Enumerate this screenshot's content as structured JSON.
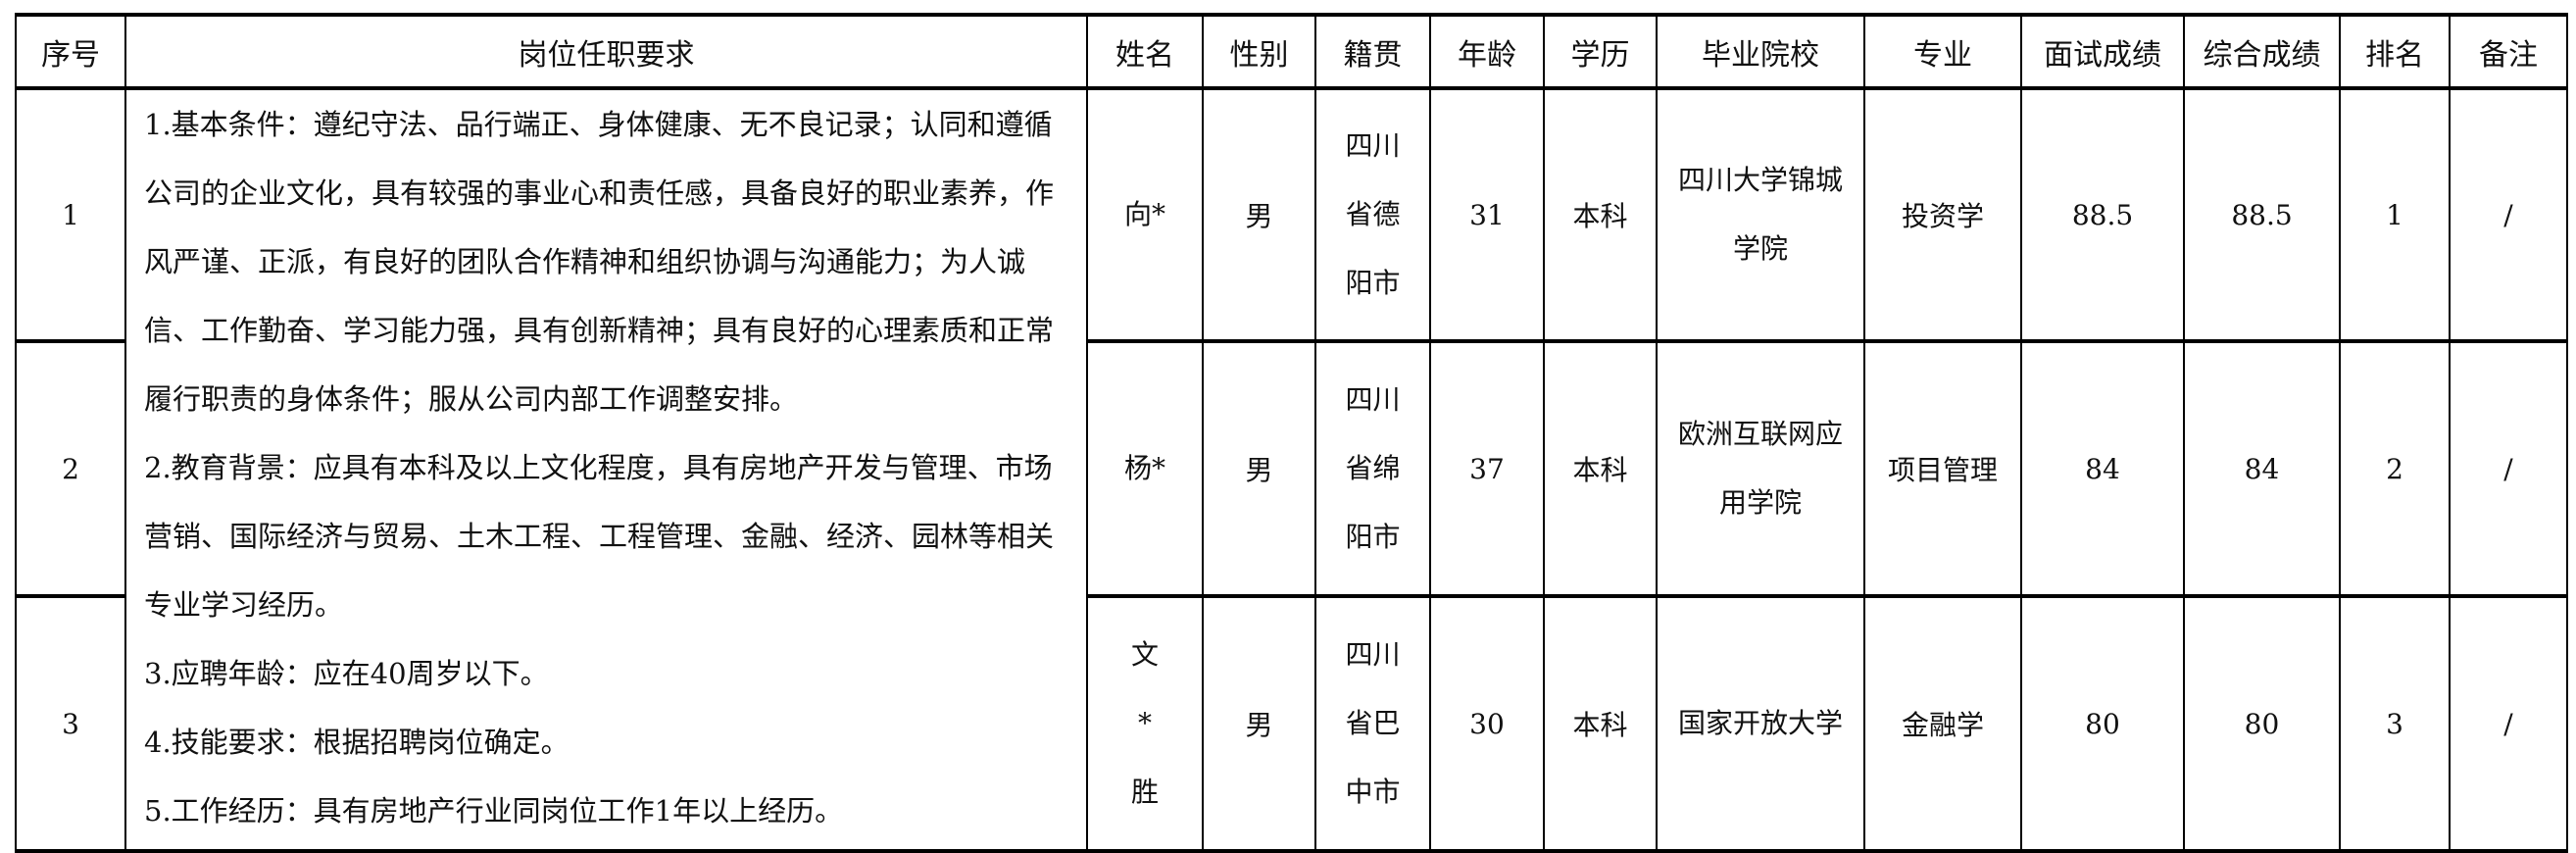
{
  "headers": [
    "序号",
    "岗位任职要求",
    "姓名",
    "性别",
    "籍贯",
    "年龄",
    "学历",
    "毕业院校",
    "专业",
    "面试成绩",
    "综合成绩",
    "排名",
    "备注"
  ],
  "requirements_lines": [
    "1.基本条件：遵纪守法、品行端正、身体健康、无不良记录；认同和遵循",
    "公司的企业文化，具有较强的事业心和责任感，具备良好的职业素养，作",
    "风严谨、正派，有良好的团队合作精神和组织协调与沟通能力；为人诚",
    "信、工作勤奋、学习能力强，具有创新精神；具有良好的心理素质和正常",
    "履行职责的身体条件；服从公司内部工作调整安排。",
    "2.教育背景：应具有本科及以上文化程度，具有房地产开发与管理、市场",
    "营销、国际经济与贸易、土木工程、工程管理、金融、经济、园林等相关",
    "专业学习经历。",
    "3.应聘年龄：应在40周岁以下。",
    "4.技能要求：根据招聘岗位确定。",
    "5.工作经历：具有房地产行业同岗位工作1年以上经历。"
  ],
  "rows": [
    {
      "no": "1",
      "name": [
        "向*"
      ],
      "gender": "男",
      "origin": [
        "四川",
        "省德",
        "阳市"
      ],
      "age": "31",
      "edu": "本科",
      "school": [
        "四川大学锦城",
        "学院"
      ],
      "major": "投资学",
      "interview": "88.5",
      "total": "88.5",
      "rank": "1",
      "note": "/"
    },
    {
      "no": "2",
      "name": [
        "杨*"
      ],
      "gender": "男",
      "origin": [
        "四川",
        "省绵",
        "阳市"
      ],
      "age": "37",
      "edu": "本科",
      "school": [
        "欧洲互联网应",
        "用学院"
      ],
      "major": "项目管理",
      "interview": "84",
      "total": "84",
      "rank": "2",
      "note": "/"
    },
    {
      "no": "3",
      "name": [
        "文",
        "*",
        "胜"
      ],
      "gender": "男",
      "origin": [
        "四川",
        "省巴",
        "中市"
      ],
      "age": "30",
      "edu": "本科",
      "school": [
        "国家开放大学"
      ],
      "major": "金融学",
      "interview": "80",
      "total": "80",
      "rank": "3",
      "note": "/"
    }
  ]
}
